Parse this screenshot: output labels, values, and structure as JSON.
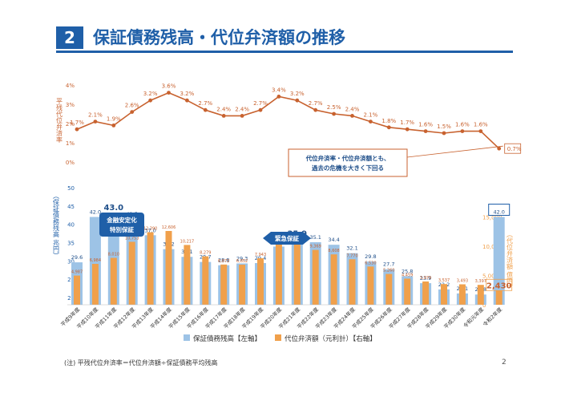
{
  "header": {
    "number": "2",
    "title": "保証債務残高・代位弁済額の推移"
  },
  "chart_data": {
    "type": "bar+line",
    "categories": [
      "平成9年度",
      "平成10年度",
      "平成11年度",
      "平成12年度",
      "平成13年度",
      "平成14年度",
      "平成15年度",
      "平成16年度",
      "平成17年度",
      "平成18年度",
      "平成19年度",
      "平成20年度",
      "平成21年度",
      "平成22年度",
      "平成23年度",
      "平成24年度",
      "平成25年度",
      "平成26年度",
      "平成27年度",
      "平成28年度",
      "平成29年度",
      "平成30年度",
      "令和元年度",
      "令和2年度"
    ],
    "line": {
      "name": "",
      "ylabel": "平残代位弁済率",
      "yticks": [
        "0%",
        "1%",
        "2%",
        "3%",
        "4%"
      ],
      "ylim": [
        0,
        4
      ],
      "values": [
        1.7,
        2.1,
        1.9,
        2.6,
        3.2,
        3.6,
        3.2,
        2.7,
        2.4,
        2.4,
        2.7,
        3.4,
        3.2,
        2.7,
        2.5,
        2.4,
        2.1,
        1.8,
        1.7,
        1.6,
        1.5,
        1.6,
        1.6,
        0.7
      ],
      "labels": [
        "1.7%",
        "2.1%",
        "1.9%",
        "2.6%",
        "3.2%",
        "3.6%",
        "3.2%",
        "2.7%",
        "2.4%",
        "2.4%",
        "2.7%",
        "3.4%",
        "3.2%",
        "2.7%",
        "2.5%",
        "2.4%",
        "2.1%",
        "1.8%",
        "1.7%",
        "1.6%",
        "1.5%",
        "1.6%",
        "1.6%",
        "0.7%"
      ],
      "color": "#c8622f"
    },
    "bars_left": {
      "name": "保証債務残高【左軸】",
      "ylabel": "（保証債務残高 兆円）",
      "yticks": [
        "20",
        "25",
        "30",
        "35",
        "40",
        "45",
        "50"
      ],
      "ylim": [
        18,
        50
      ],
      "values": [
        29.6,
        42.0,
        43.0,
        41.5,
        37.0,
        33.2,
        31.1,
        29.7,
        28.8,
        29.3,
        29.4,
        33.9,
        35.9,
        35.1,
        34.4,
        32.1,
        29.8,
        27.7,
        25.8,
        23.9,
        22.2,
        21.1,
        20.8,
        42.0
      ],
      "labels": [
        "29.6",
        "42.0",
        "43.0",
        "41.5",
        "37.0",
        "33.2",
        "31.1",
        "29.7",
        "28.8",
        "29.3",
        "29.4",
        "33.9",
        "35.9",
        "35.1",
        "34.4",
        "32.1",
        "29.8",
        "27.7",
        "25.8",
        "23.9",
        "22.2",
        "21.1",
        "20.8",
        "42.0"
      ],
      "color": "#9dc3e6"
    },
    "bars_right": {
      "name": "代位弁済額（元利計）【右軸】",
      "ylabel": "（代位弁済額 億円）",
      "yticks": [
        "0",
        "5,000",
        "10,000",
        "15,000"
      ],
      "ylim": [
        0,
        20000
      ],
      "values": [
        4987,
        6984,
        8010,
        10753,
        12390,
        12606,
        10217,
        8279,
        6872,
        6852,
        7943,
        10358,
        11420,
        9369,
        8608,
        7770,
        6530,
        5260,
        4459,
        3979,
        3537,
        3493,
        3397,
        2430
      ],
      "labels": [
        "4,987",
        "6,984",
        "8,010",
        "10,753",
        "12,390",
        "12,606",
        "10,217",
        "8,279",
        "6,872",
        "6,852",
        "7,943",
        "10,358",
        "11,420",
        "9,369",
        "8,608",
        "7,770",
        "6,530",
        "5,260",
        "4,459",
        "3,979",
        "3,537",
        "3,493",
        "3,397",
        "2,430"
      ],
      "color": "#f0a04b"
    },
    "annotations": {
      "callout": [
        "代位弁済率・代位弁済額とも、",
        "過去の危機を大きく下回る"
      ],
      "badge1": [
        "金融安定化",
        "特別保証"
      ],
      "badge2": "緊急保証"
    }
  },
  "footer": {
    "note": "(注) 平残代位弁済率＝代位弁済額÷保証債務平均残高",
    "page": "2"
  }
}
